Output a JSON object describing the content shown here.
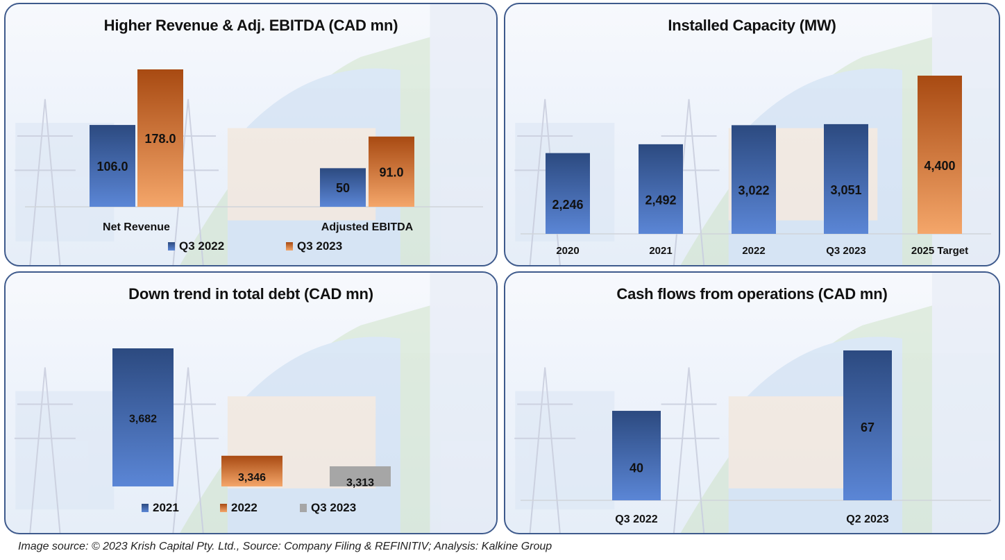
{
  "caption": "Image source: © 2023 Krish Capital Pty. Ltd., Source: Company Filing & REFINITIV; Analysis: Kalkine Group",
  "colors": {
    "blue_top": "#2c4a80",
    "blue_bottom": "#5b86d6",
    "orange_top": "#a84a12",
    "orange_bottom": "#f4a66a",
    "gray": "#a6a6a6",
    "border": "#3e5a8c",
    "axis": "#d0d4da"
  },
  "chart_data": [
    {
      "type": "bar",
      "title": "Higher Revenue & Adj. EBITDA (CAD mn)",
      "categories": [
        "Net Revenue",
        "Adjusted EBITDA"
      ],
      "series": [
        {
          "name": "Q3 2022",
          "color": "blue",
          "values": [
            106.0,
            50
          ],
          "labels": [
            "106.0",
            "50"
          ]
        },
        {
          "name": "Q3 2023",
          "color": "orange",
          "values": [
            178.0,
            91.0
          ],
          "labels": [
            "178.0",
            "91.0"
          ]
        }
      ],
      "legend": "bottom",
      "ylim": [
        0,
        178
      ],
      "xlabel": "",
      "ylabel": ""
    },
    {
      "type": "bar",
      "title": "Installed Capacity (MW)",
      "categories": [
        "2020",
        "2021",
        "2022",
        "Q3 2023",
        "2025 Target"
      ],
      "values": [
        2246,
        2492,
        3022,
        3051,
        4400
      ],
      "labels": [
        "2,246",
        "2,492",
        "3,022",
        "3,051",
        "4,400"
      ],
      "colors": [
        "blue",
        "blue",
        "blue",
        "blue",
        "orange"
      ],
      "legend": "none",
      "xlabel": "",
      "ylabel": ""
    },
    {
      "type": "bar",
      "title": "Down trend in total debt (CAD mn)",
      "categories": [
        "2021",
        "2022",
        "Q3 2023"
      ],
      "values": [
        3682,
        3346,
        3313
      ],
      "labels": [
        "3,682",
        "3,346",
        "3,313"
      ],
      "colors": [
        "blue",
        "orange",
        "gray"
      ],
      "legend": "bottom",
      "legend_entries": [
        "2021",
        "2022",
        "Q3 2023"
      ],
      "note": "axis does not start at zero",
      "xlabel": "",
      "ylabel": ""
    },
    {
      "type": "bar",
      "title": "Cash flows from operations (CAD mn)",
      "categories": [
        "Q3 2022",
        "Q2 2023"
      ],
      "values": [
        40,
        67
      ],
      "labels": [
        "40",
        "67"
      ],
      "colors": [
        "blue",
        "blue"
      ],
      "legend": "none",
      "xlabel": "",
      "ylabel": ""
    }
  ]
}
